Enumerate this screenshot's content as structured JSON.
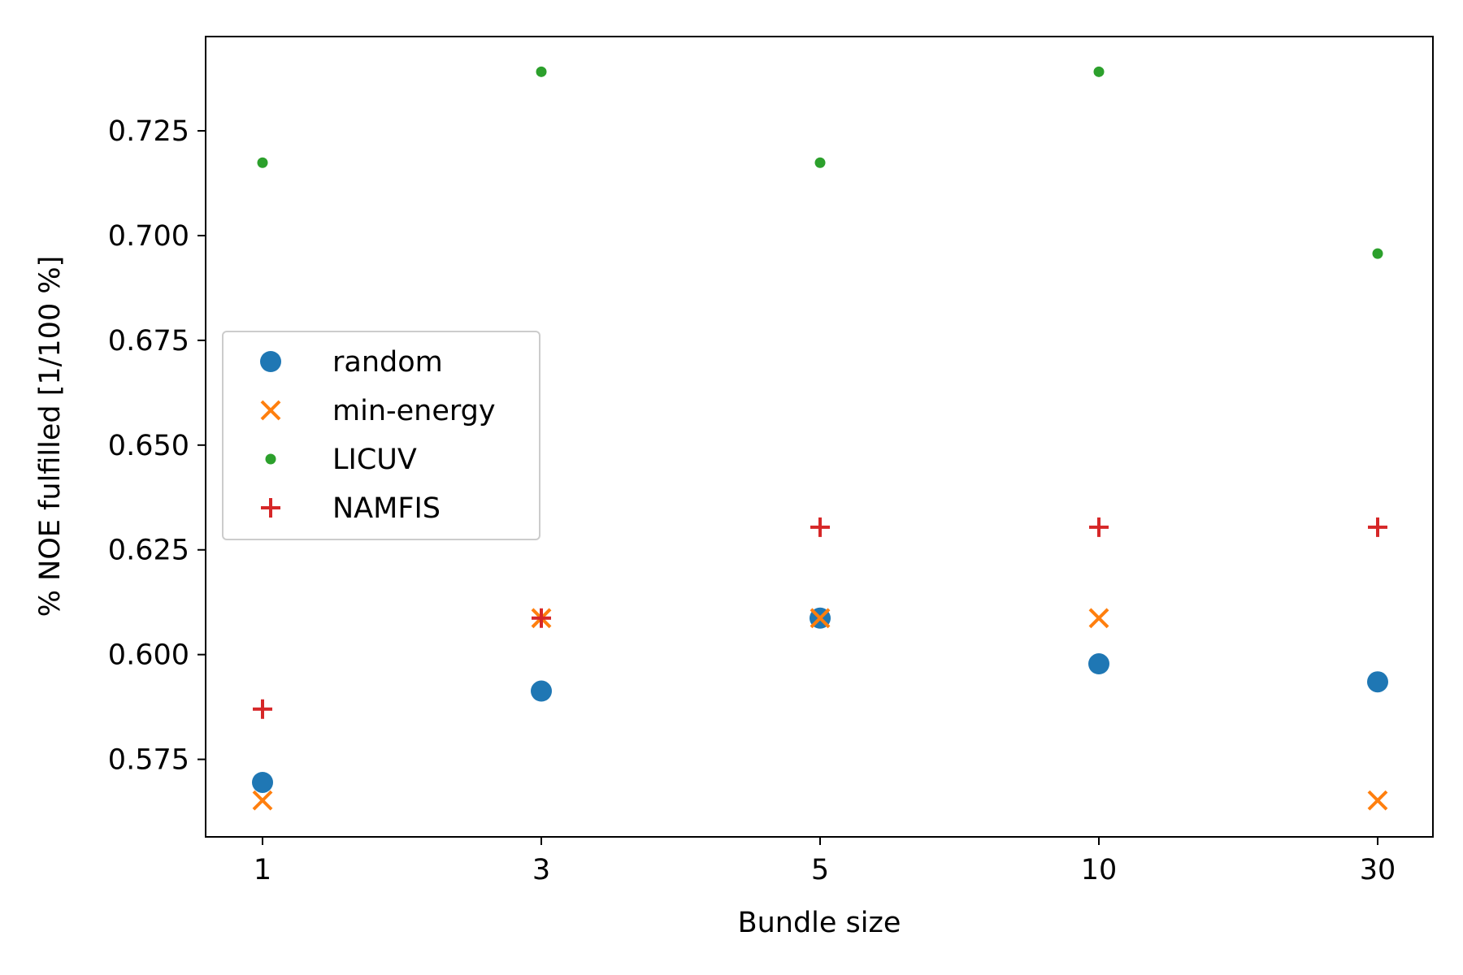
{
  "chart_data": {
    "type": "scatter",
    "xlabel": "Bundle size",
    "ylabel": "% NOE fulfilled [1/100 %]",
    "categories": [
      "1",
      "3",
      "5",
      "10",
      "30"
    ],
    "ylim": [
      0.5565,
      0.7475
    ],
    "yticks": [
      "0.575",
      "0.600",
      "0.625",
      "0.650",
      "0.675",
      "0.700",
      "0.725"
    ],
    "legend_position": "center-left",
    "grid": false,
    "series": [
      {
        "name": "random",
        "marker": "circle",
        "color": "#1f77b4",
        "values": [
          0.5695,
          0.5913,
          0.6087,
          0.5978,
          0.5935
        ]
      },
      {
        "name": "min-energy",
        "marker": "x",
        "color": "#ff7f0e",
        "values": [
          0.5652,
          0.6087,
          0.6087,
          0.6087,
          0.5652
        ]
      },
      {
        "name": "LICUV",
        "marker": "small-circle",
        "color": "#2ca02c",
        "values": [
          0.7174,
          0.7391,
          0.7174,
          0.7391,
          0.6957
        ]
      },
      {
        "name": "NAMFIS",
        "marker": "plus",
        "color": "#d62728",
        "values": [
          0.587,
          0.6087,
          0.6304,
          0.6304,
          0.6304
        ]
      }
    ]
  }
}
